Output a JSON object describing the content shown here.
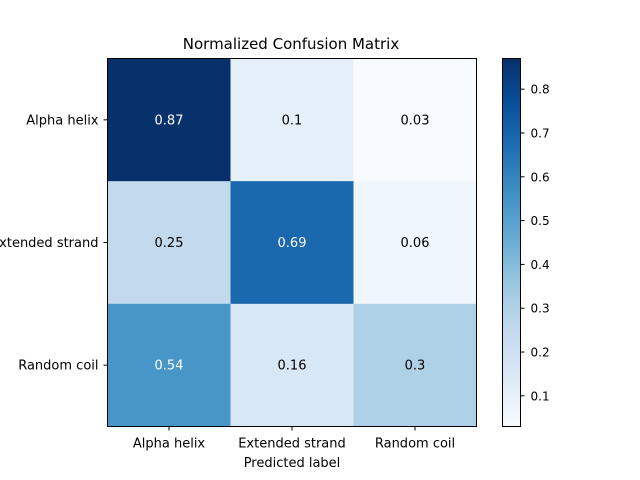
{
  "chart_data": {
    "type": "heatmap",
    "title": "Normalized Confusion Matrix",
    "xlabel": "Predicted label",
    "ylabel": "",
    "x_categories": [
      "Alpha helix",
      "Extended strand",
      "Random coil"
    ],
    "y_categories": [
      "Alpha helix",
      "Extended strand",
      "Random coil"
    ],
    "values": [
      [
        0.87,
        0.1,
        0.03
      ],
      [
        0.25,
        0.69,
        0.06
      ],
      [
        0.54,
        0.16,
        0.3
      ]
    ],
    "colormap": "Blues",
    "colorbar": {
      "range": [
        0.03,
        0.87
      ],
      "ticks": [
        0.1,
        0.2,
        0.3,
        0.4,
        0.5,
        0.6,
        0.7,
        0.8
      ]
    }
  }
}
